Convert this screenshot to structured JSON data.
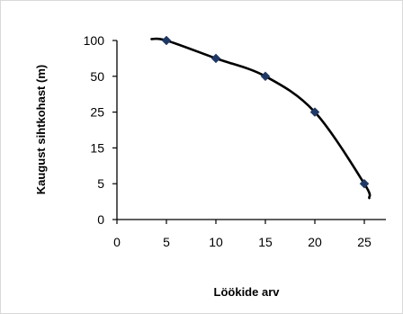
{
  "chart_data": {
    "type": "line",
    "title": "",
    "xlabel": "Löökide arv",
    "ylabel": "Kaugust sihtkohast (m)",
    "x": [
      5,
      10,
      15,
      20,
      25
    ],
    "y_tick_labels": [
      "0",
      "5",
      "15",
      "25",
      "50",
      "100"
    ],
    "x_tick_labels": [
      "0",
      "5",
      "10",
      "15",
      "20",
      "25"
    ],
    "series": [
      {
        "values": [
          100,
          75,
          50,
          25,
          5
        ],
        "marker": "diamond",
        "smooth_line": true
      }
    ],
    "xlim": [
      0,
      27
    ],
    "y_scale": "categorical-ordinal (ticks equally spaced: 0, 5, 15, 25, 50, 100)",
    "grid": false,
    "legend": "none",
    "colors": {
      "line": "#000000",
      "marker": "#1f3864",
      "axis": "#000000",
      "frame": "#d9d9d9"
    }
  }
}
